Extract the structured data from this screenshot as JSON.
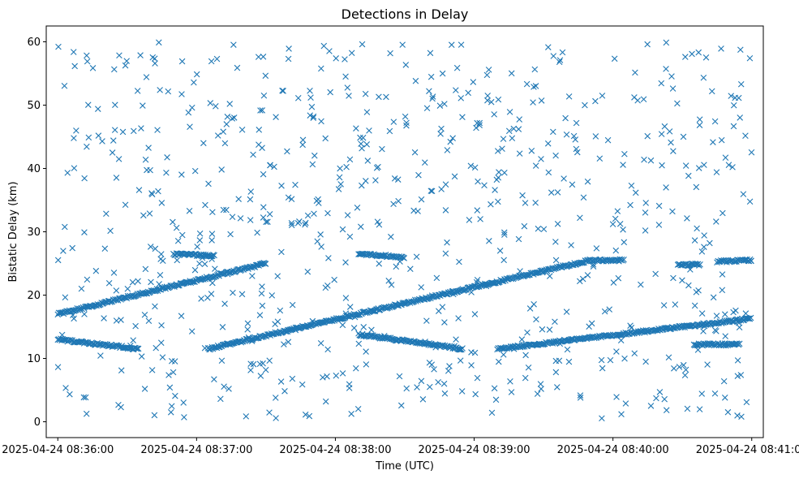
{
  "chart_data": {
    "type": "scatter",
    "title": "Detections in Delay",
    "xlabel": "Time (UTC)",
    "ylabel": "Bistatic Delay (km)",
    "x_ticks": [
      "2025-04-24 08:36:00",
      "2025-04-24 08:37:00",
      "2025-04-24 08:38:00",
      "2025-04-24 08:39:00",
      "2025-04-24 08:40:00",
      "2025-04-24 08:41:00"
    ],
    "y_ticks": [
      0,
      10,
      20,
      30,
      40,
      50,
      60
    ],
    "xlim": [
      "2025-04-24 08:35:55",
      "2025-04-24 08:41:05"
    ],
    "ylim": [
      -2.5,
      62.5
    ],
    "marker": "x",
    "color": "#1f77b4",
    "grid": false,
    "series": [
      {
        "description_tracks": [
          {
            "x_start": "2025-04-24 08:36:00",
            "x_end": "2025-04-24 08:37:30",
            "y_start": 17.0,
            "y_end": 25.0
          },
          {
            "x_start": "2025-04-24 08:37:05",
            "x_end": "2025-04-24 08:39:50",
            "y_start": 11.5,
            "y_end": 25.5
          },
          {
            "x_start": "2025-04-24 08:39:50",
            "x_end": "2025-04-24 08:40:05",
            "y_start": 25.5,
            "y_end": 25.5
          },
          {
            "x_start": "2025-04-24 08:36:00",
            "x_end": "2025-04-24 08:36:35",
            "y_start": 13.0,
            "y_end": 11.5
          },
          {
            "x_start": "2025-04-24 08:38:10",
            "x_end": "2025-04-24 08:38:55",
            "y_start": 13.8,
            "y_end": 11.5
          },
          {
            "x_start": "2025-04-24 08:39:10",
            "x_end": "2025-04-24 08:41:00",
            "y_start": 11.5,
            "y_end": 16.3
          },
          {
            "x_start": "2025-04-24 08:36:50",
            "x_end": "2025-04-24 08:37:08",
            "y_start": 26.5,
            "y_end": 26.2
          },
          {
            "x_start": "2025-04-24 08:38:10",
            "x_end": "2025-04-24 08:38:30",
            "y_start": 26.5,
            "y_end": 26.0
          },
          {
            "x_start": "2025-04-24 08:40:28",
            "x_end": "2025-04-24 08:40:38",
            "y_start": 24.8,
            "y_end": 24.8
          },
          {
            "x_start": "2025-04-24 08:40:45",
            "x_end": "2025-04-24 08:41:00",
            "y_start": 25.3,
            "y_end": 25.5
          },
          {
            "x_start": "2025-04-24 08:40:35",
            "x_end": "2025-04-24 08:40:55",
            "y_start": 12.2,
            "y_end": 12.2
          }
        ]
      }
    ]
  }
}
